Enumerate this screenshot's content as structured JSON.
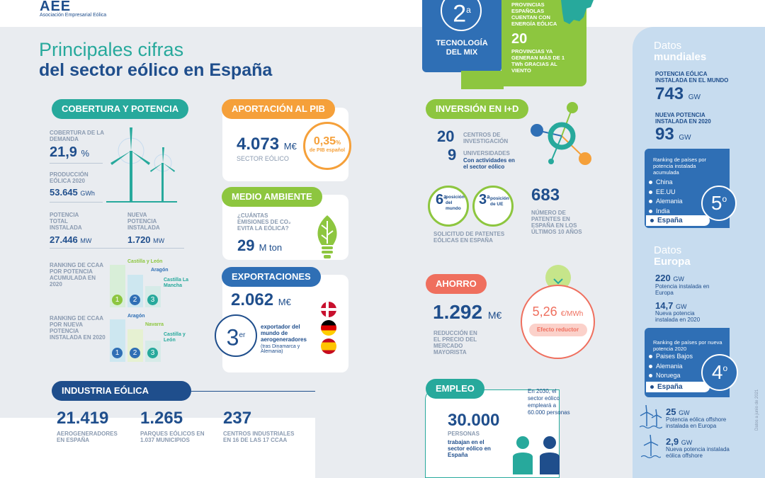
{
  "logo": {
    "text": "AEE",
    "subtitle": "Asociación Empresarial Eólica"
  },
  "title": {
    "line1": "Principales cifras",
    "line2": "del sector eólico en España"
  },
  "colors": {
    "teal": "#27a99c",
    "navy": "#1f4e8c",
    "orange": "#f5a03a",
    "lime": "#8dc63f",
    "blue": "#2f6fb5",
    "coral": "#ef6f5e",
    "grey_bg": "#e9ecf0",
    "light_blue": "#c7dcef"
  },
  "tech": {
    "rank": "2",
    "rank_sup": "a",
    "label": "TECNOLOGÍA DEL MIX",
    "prov_text": "PROVINCIAS ESPAÑOLAS CUENTAN CON ENERGÍA EÓLICA",
    "prov_count": "20",
    "prov_count_text": "PROVINCIAS YA GENERAN MÁS DE 1 TWh GRACIAS AL VIENTO"
  },
  "cobertura": {
    "header": "COBERTURA Y POTENCIA",
    "coverage_label": "COBERTURA DE LA DEMANDA",
    "coverage_value": "21,9",
    "coverage_unit": "%",
    "production_label": "PRODUCCIÓN EÓLICA 2020",
    "production_value": "53.645",
    "production_unit": "GWh",
    "total_label": "POTENCIA TOTAL INSTALADA",
    "total_value": "27.446",
    "total_unit": "MW",
    "new_label": "NUEVA POTENCIA INSTALADA",
    "new_value": "1.720",
    "new_unit": "MW",
    "ranking1_label": "RANKING DE CCAA POR POTENCIA ACUMULADA EN 2020",
    "ranking1": [
      "Castilla y León",
      "Aragón",
      "Castilla La Mancha"
    ],
    "ranking2_label": "RANKING DE CCAA POR NUEVA POTENCIA INSTALADA EN 2020",
    "ranking2": [
      "Aragón",
      "Navarra",
      "Castilla y León"
    ],
    "positions": [
      "1",
      "2",
      "3"
    ]
  },
  "pib": {
    "header": "APORTACIÓN AL PIB",
    "value": "4.073",
    "unit": "M€",
    "label": "SECTOR EÓLICO",
    "pct": "0,35",
    "pct_unit": "%",
    "pct_label": "de PIB español"
  },
  "medio": {
    "header": "MEDIO AMBIENTE",
    "question": "¿CUÁNTAS EMISIONES DE CO₂ EVITA LA EÓLICA?",
    "value": "29",
    "unit": "M ton"
  },
  "export": {
    "header": "EXPORTACIONES",
    "value": "2.062",
    "unit": "M€",
    "rank": "3",
    "rank_sup": "er",
    "text": "exportador del mundo de aerogeneradores",
    "note": "(tras Dinamarca y Alemania)"
  },
  "industria": {
    "header": "INDUSTRIA EÓLICA",
    "items": [
      {
        "value": "21.419",
        "label": "AEROGENERADORES EN ESPAÑA"
      },
      {
        "value": "1.265",
        "label": "PARQUES EÓLICOS EN 1.037 MUNICIPIOS"
      },
      {
        "value": "237",
        "label": "CENTROS INDUSTRIALES EN 16 DE LAS 17 CCAA"
      }
    ]
  },
  "inversion": {
    "header": "INVERSIÓN EN I+D",
    "centers_value": "20",
    "centers_label": "CENTROS DE INVESTIGACIÓN",
    "univ_value": "9",
    "univ_label": "UNIVERSIDADES",
    "univ_sub": "Con actividades en el sector eólico",
    "rank_world": "6",
    "rank_world_sup": "a",
    "rank_world_label": "posición del mundo",
    "rank_eu": "3",
    "rank_eu_sup": "a",
    "rank_eu_label": "posición de UE",
    "patents_label": "SOLICITUD DE PATENTES EÓLICAS EN ESPAÑA",
    "patents_value": "683",
    "patents_text": "NÚMERO DE PATENTES EN ESPAÑA EN LOS ÚLTIMOS 10 AÑOS"
  },
  "ahorro": {
    "header": "AHORRO",
    "value": "1.292",
    "unit": "M€",
    "label": "REDUCCIÓN EN EL PRECIO DEL MERCADO MAYORISTA",
    "price": "5,26",
    "price_unit": "€/MWh",
    "effect": "Efecto reductor"
  },
  "empleo": {
    "header": "EMPLEO",
    "value": "30.000",
    "label": "PERSONAS",
    "sub": "trabajan en el sector eólico en España",
    "future": "En 2030, el sector eólico empleará a 60.000 personas"
  },
  "mundial": {
    "title_light": "Datos",
    "title_bold": "mundiales",
    "installed_label": "POTENCIA EÓLICA INSTALADA EN EL MUNDO",
    "installed_value": "743",
    "installed_unit": "GW",
    "new_label": "NUEVA POTENCIA INSTALADA EN 2020",
    "new_value": "93",
    "new_unit": "GW",
    "ranking_label": "Ranking de países por potencia instalada acumulada",
    "ranking": [
      "China",
      "EE.UU",
      "Alemania",
      "India",
      "España"
    ],
    "position": "5",
    "position_sup": "o"
  },
  "europa": {
    "title_light": "Datos",
    "title_bold": "Europa",
    "installed_value": "220",
    "installed_unit": "GW",
    "installed_label": "Potencia instalada en Europa",
    "new_value": "14,7",
    "new_unit": "GW",
    "new_label": "Nueva potencia instalada en 2020",
    "ranking_label": "Ranking de países por nueva potencia 2020",
    "ranking": [
      "Paises Bajos",
      "Alemania",
      "Noruega",
      "España"
    ],
    "position": "4",
    "position_sup": "o",
    "offshore_value": "25",
    "offshore_unit": "GW",
    "offshore_label": "Potencia eólica offshore instalada en Europa",
    "offshore_new_value": "2,9",
    "offshore_new_unit": "GW",
    "offshore_new_label": "Nueva potencia instalada eólica offshore"
  },
  "footnote": "Datos a junio de 2021"
}
